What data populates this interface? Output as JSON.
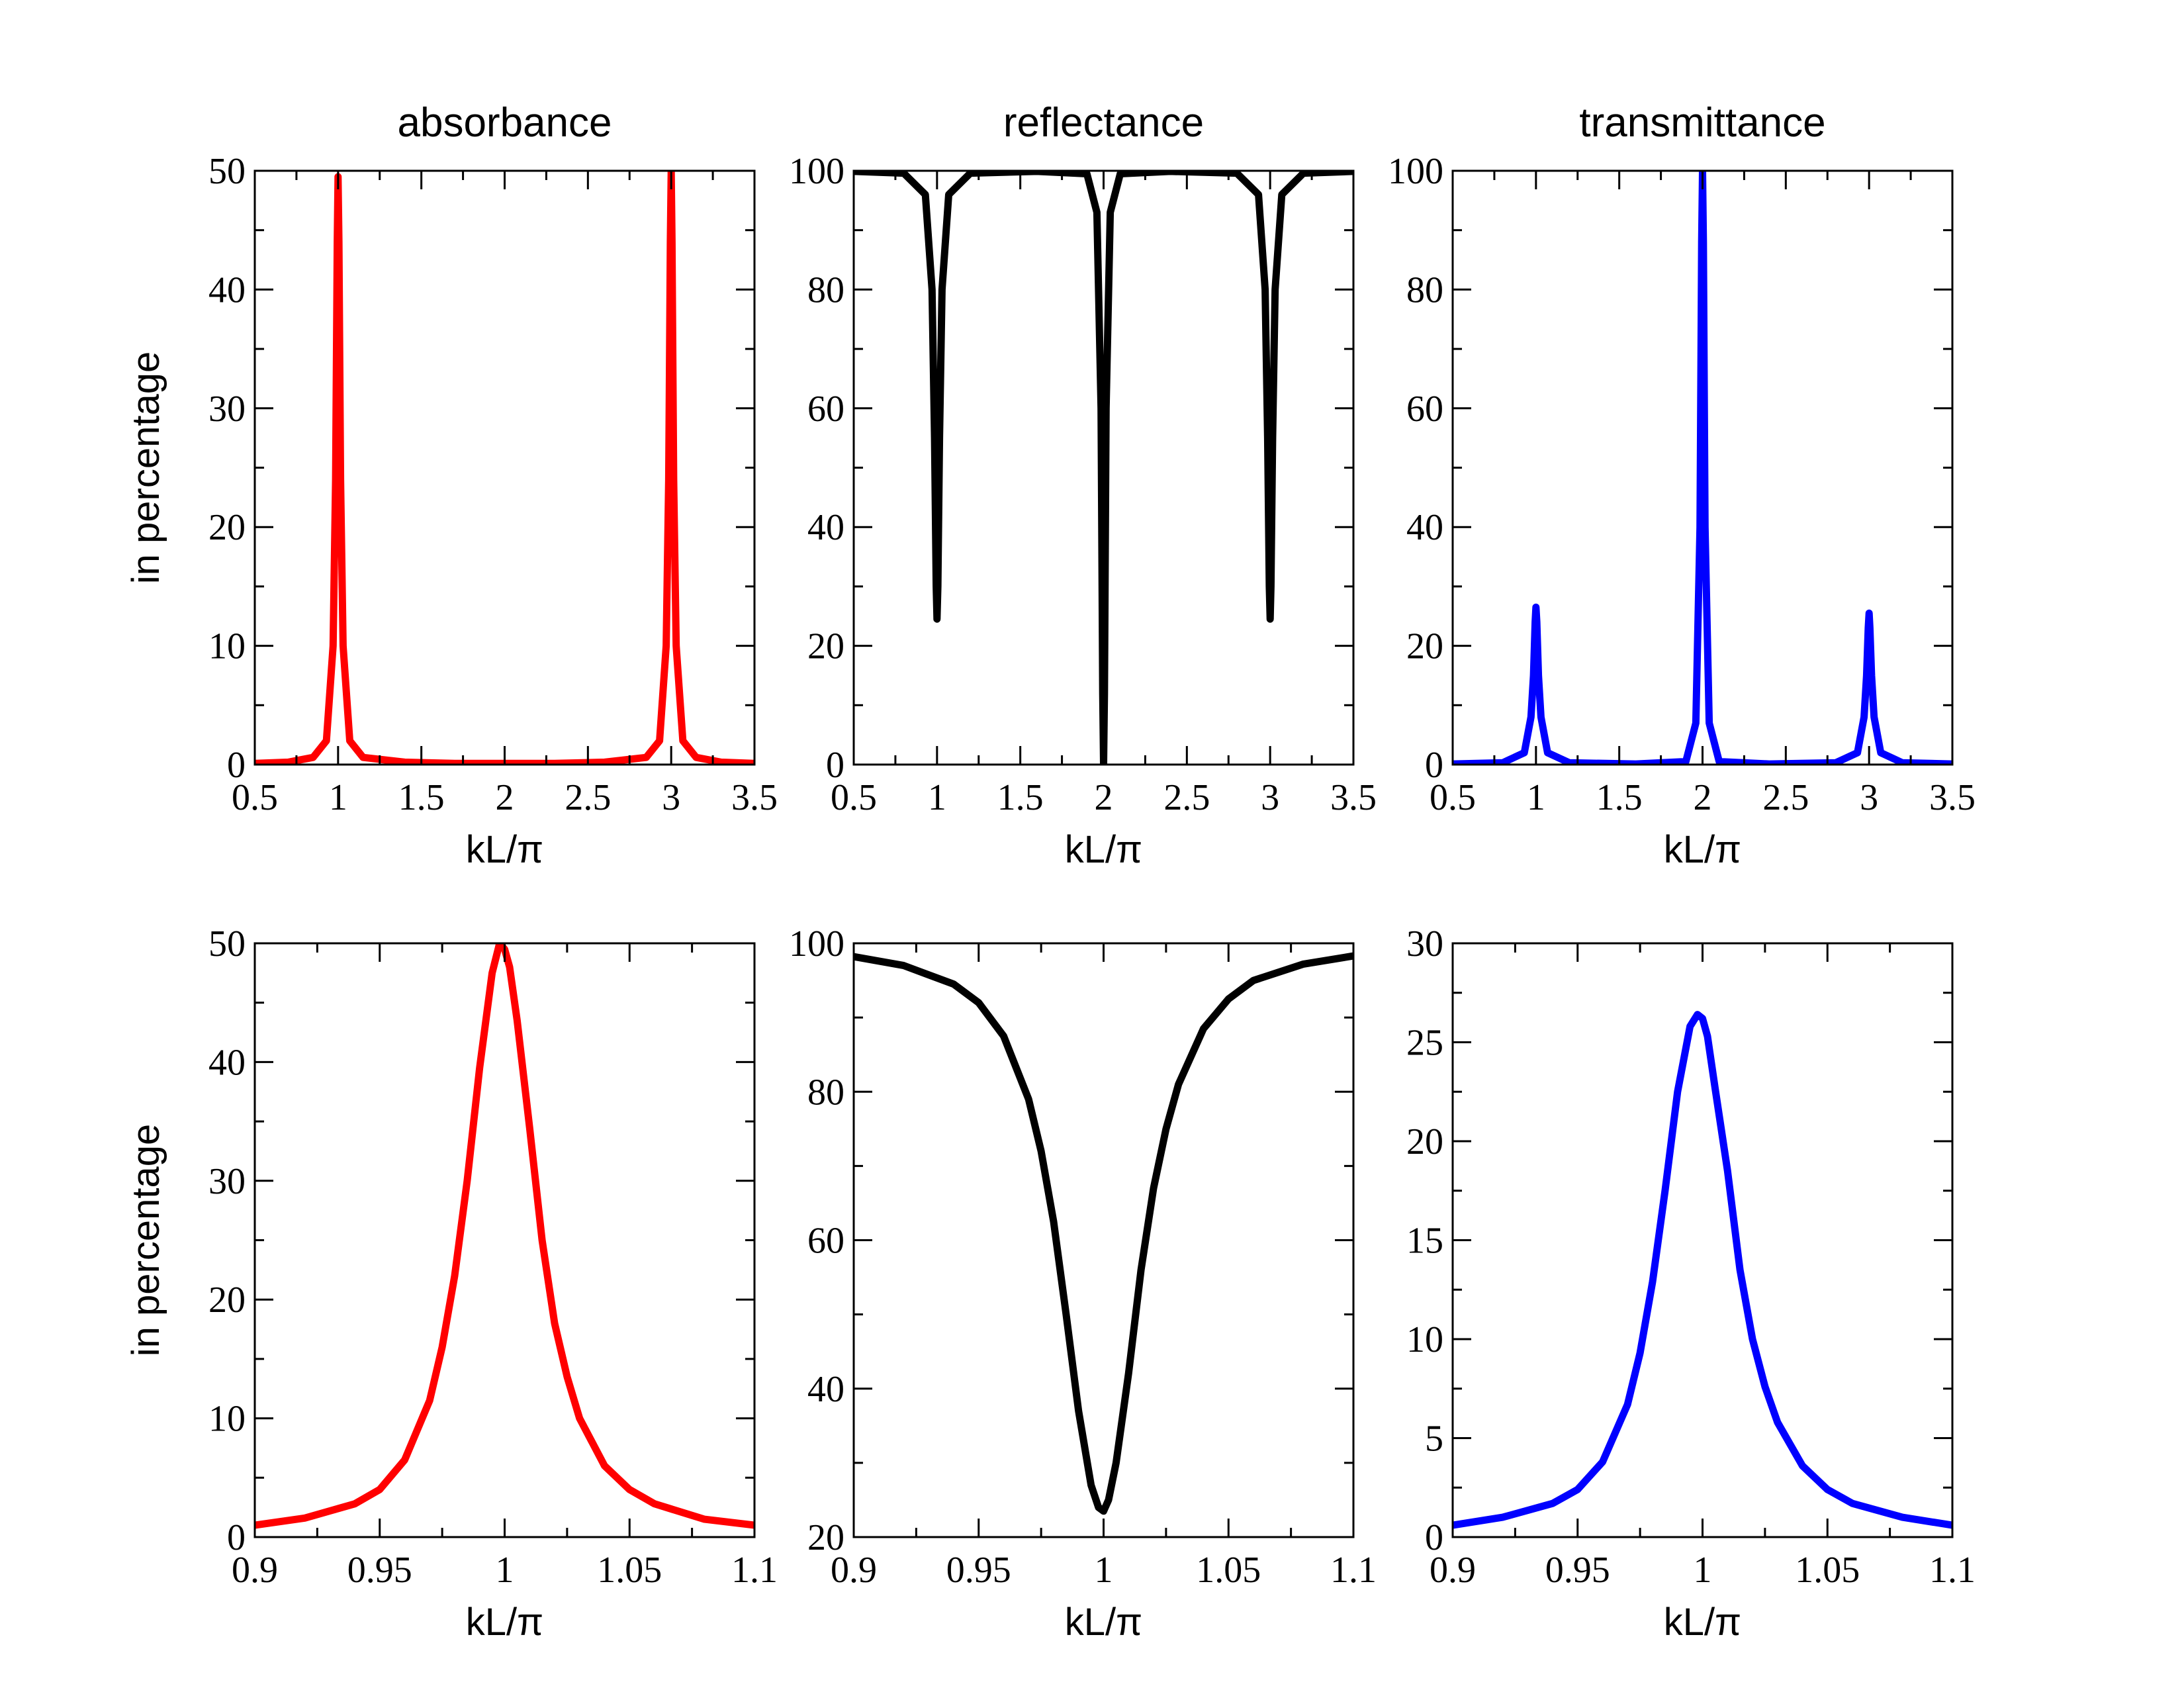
{
  "figure": {
    "background": "#ffffff"
  },
  "chart_data": [
    {
      "type": "line",
      "panel_id": "top-absorbance",
      "title": "absorbance",
      "xlabel": "kL/π",
      "ylabel": "in percentage",
      "xlim": [
        0.5,
        3.5
      ],
      "ylim": [
        0,
        50
      ],
      "xticks": [
        0.5,
        1,
        1.5,
        2,
        2.5,
        3,
        3.5
      ],
      "xtick_labels": [
        "0.5",
        "1",
        "1.5",
        "2",
        "2.5",
        "3",
        "3.5"
      ],
      "yticks": [
        0,
        10,
        20,
        30,
        40,
        50
      ],
      "ytick_labels": [
        "0",
        "10",
        "20",
        "30",
        "40",
        "50"
      ],
      "color": "#ff0000",
      "series": [
        {
          "name": "absorbance",
          "x": [
            0.5,
            0.7,
            0.85,
            0.93,
            0.97,
            0.985,
            0.995,
            1.0,
            1.005,
            1.015,
            1.03,
            1.07,
            1.15,
            1.4,
            1.7,
            2.0,
            2.3,
            2.6,
            2.85,
            2.93,
            2.97,
            2.985,
            2.995,
            3.0,
            3.005,
            3.015,
            3.03,
            3.07,
            3.15,
            3.3,
            3.5
          ],
          "y": [
            0.1,
            0.2,
            0.6,
            2.0,
            10.0,
            24.0,
            44.0,
            49.5,
            44.0,
            24.0,
            10.0,
            2.0,
            0.6,
            0.2,
            0.1,
            0.1,
            0.1,
            0.2,
            0.6,
            2.0,
            10.0,
            24.0,
            44.0,
            50.0,
            44.0,
            24.0,
            10.0,
            2.0,
            0.6,
            0.2,
            0.1
          ]
        }
      ]
    },
    {
      "type": "line",
      "panel_id": "top-reflectance",
      "title": "reflectance",
      "xlabel": "kL/π",
      "ylabel": "",
      "xlim": [
        0.5,
        3.5
      ],
      "ylim": [
        0,
        100
      ],
      "xticks": [
        0.5,
        1,
        1.5,
        2,
        2.5,
        3,
        3.5
      ],
      "xtick_labels": [
        "0.5",
        "1",
        "1.5",
        "2",
        "2.5",
        "3",
        "3.5"
      ],
      "yticks": [
        0,
        20,
        40,
        60,
        80,
        100
      ],
      "ytick_labels": [
        "0",
        "20",
        "40",
        "60",
        "80",
        "100"
      ],
      "color": "#000000",
      "series": [
        {
          "name": "reflectance",
          "x": [
            0.5,
            0.8,
            0.93,
            0.97,
            0.985,
            0.995,
            1.0,
            1.005,
            1.015,
            1.03,
            1.07,
            1.2,
            1.6,
            1.9,
            1.96,
            1.985,
            1.995,
            2.0,
            2.005,
            2.015,
            2.04,
            2.1,
            2.4,
            2.8,
            2.93,
            2.97,
            2.985,
            2.995,
            3.0,
            3.005,
            3.015,
            3.03,
            3.07,
            3.2,
            3.5
          ],
          "y": [
            99.9,
            99.6,
            96.0,
            80.0,
            55.0,
            30.0,
            24.5,
            30.0,
            55.0,
            80.0,
            96.0,
            99.6,
            99.9,
            99.5,
            93.0,
            60.0,
            12.0,
            0.0,
            12.0,
            60.0,
            93.0,
            99.5,
            99.9,
            99.6,
            96.0,
            80.0,
            55.0,
            30.0,
            24.5,
            30.0,
            55.0,
            80.0,
            96.0,
            99.6,
            99.9
          ]
        }
      ]
    },
    {
      "type": "line",
      "panel_id": "top-transmittance",
      "title": "transmittance",
      "xlabel": "kL/π",
      "ylabel": "",
      "xlim": [
        0.5,
        3.5
      ],
      "ylim": [
        0,
        100
      ],
      "xticks": [
        0.5,
        1,
        1.5,
        2,
        2.5,
        3,
        3.5
      ],
      "xtick_labels": [
        "0.5",
        "1",
        "1.5",
        "2",
        "2.5",
        "3",
        "3.5"
      ],
      "yticks": [
        0,
        20,
        40,
        60,
        80,
        100
      ],
      "ytick_labels": [
        "0",
        "20",
        "40",
        "60",
        "80",
        "100"
      ],
      "color": "#0000ff",
      "series": [
        {
          "name": "transmittance",
          "x": [
            0.5,
            0.8,
            0.93,
            0.97,
            0.985,
            0.995,
            1.0,
            1.005,
            1.015,
            1.03,
            1.07,
            1.2,
            1.6,
            1.9,
            1.96,
            1.985,
            1.995,
            2.0,
            2.005,
            2.015,
            2.04,
            2.1,
            2.4,
            2.8,
            2.93,
            2.97,
            2.985,
            2.995,
            3.0,
            3.005,
            3.015,
            3.03,
            3.07,
            3.2,
            3.5
          ],
          "y": [
            0.1,
            0.3,
            2.0,
            8.0,
            15.0,
            24.0,
            26.5,
            24.0,
            15.0,
            8.0,
            2.0,
            0.3,
            0.1,
            0.5,
            7.0,
            40.0,
            88.0,
            100.0,
            88.0,
            40.0,
            7.0,
            0.5,
            0.1,
            0.3,
            2.0,
            8.0,
            15.0,
            23.0,
            25.5,
            23.0,
            15.0,
            8.0,
            2.0,
            0.3,
            0.1
          ]
        }
      ]
    },
    {
      "type": "line",
      "panel_id": "bottom-absorbance",
      "xlabel": "kL/π",
      "ylabel": "in percentage",
      "xlim": [
        0.9,
        1.1
      ],
      "ylim": [
        0,
        50
      ],
      "xticks": [
        0.9,
        0.95,
        1.0,
        1.05,
        1.1
      ],
      "xtick_labels": [
        "0.9",
        "0.95",
        "1",
        "1.05",
        "1.1"
      ],
      "yticks": [
        0,
        10,
        20,
        30,
        40,
        50
      ],
      "ytick_labels": [
        "0",
        "10",
        "20",
        "30",
        "40",
        "50"
      ],
      "color": "#ff0000",
      "series": [
        {
          "name": "absorbance",
          "x": [
            0.9,
            0.92,
            0.94,
            0.95,
            0.96,
            0.97,
            0.975,
            0.98,
            0.985,
            0.99,
            0.995,
            0.998,
            1.0,
            1.002,
            1.005,
            1.01,
            1.015,
            1.02,
            1.025,
            1.03,
            1.04,
            1.05,
            1.06,
            1.08,
            1.1
          ],
          "y": [
            1.0,
            1.6,
            2.8,
            4.0,
            6.5,
            11.5,
            16.0,
            22.0,
            30.0,
            39.5,
            47.5,
            50.0,
            49.5,
            48.0,
            43.5,
            34.5,
            25.0,
            18.0,
            13.5,
            10.0,
            6.0,
            4.0,
            2.8,
            1.5,
            1.0
          ]
        }
      ]
    },
    {
      "type": "line",
      "panel_id": "bottom-reflectance",
      "xlabel": "kL/π",
      "ylabel": "",
      "xlim": [
        0.9,
        1.1
      ],
      "ylim": [
        20,
        100
      ],
      "xticks": [
        0.9,
        0.95,
        1.0,
        1.05,
        1.1
      ],
      "xtick_labels": [
        "0.9",
        "0.95",
        "1",
        "1.05",
        "1.1"
      ],
      "yticks": [
        20,
        40,
        60,
        80,
        100
      ],
      "ytick_labels": [
        "20",
        "40",
        "60",
        "80",
        "100"
      ],
      "color": "#000000",
      "series": [
        {
          "name": "reflectance",
          "x": [
            0.9,
            0.92,
            0.94,
            0.95,
            0.96,
            0.97,
            0.975,
            0.98,
            0.985,
            0.99,
            0.995,
            0.998,
            1.0,
            1.002,
            1.005,
            1.01,
            1.015,
            1.02,
            1.025,
            1.03,
            1.04,
            1.05,
            1.06,
            1.08,
            1.1
          ],
          "y": [
            98.2,
            97.0,
            94.5,
            92.0,
            87.5,
            79.0,
            72.0,
            62.5,
            50.0,
            37.0,
            27.0,
            24.0,
            23.5,
            25.0,
            30.0,
            42.0,
            56.0,
            67.0,
            75.0,
            81.0,
            88.5,
            92.5,
            95.0,
            97.2,
            98.3
          ]
        }
      ]
    },
    {
      "type": "line",
      "panel_id": "bottom-transmittance",
      "xlabel": "kL/π",
      "ylabel": "",
      "xlim": [
        0.9,
        1.1
      ],
      "ylim": [
        0,
        30
      ],
      "xticks": [
        0.9,
        0.95,
        1.0,
        1.05,
        1.1
      ],
      "xtick_labels": [
        "0.9",
        "0.95",
        "1",
        "1.05",
        "1.1"
      ],
      "yticks": [
        0,
        5,
        10,
        15,
        20,
        25,
        30
      ],
      "ytick_labels": [
        "0",
        "5",
        "10",
        "15",
        "20",
        "25",
        "30"
      ],
      "color": "#0000ff",
      "series": [
        {
          "name": "transmittance",
          "x": [
            0.9,
            0.92,
            0.94,
            0.95,
            0.96,
            0.97,
            0.975,
            0.98,
            0.985,
            0.99,
            0.995,
            0.998,
            1.0,
            1.002,
            1.005,
            1.01,
            1.015,
            1.02,
            1.025,
            1.03,
            1.04,
            1.05,
            1.06,
            1.08,
            1.1
          ],
          "y": [
            0.6,
            1.0,
            1.7,
            2.4,
            3.8,
            6.7,
            9.3,
            12.9,
            17.5,
            22.5,
            25.8,
            26.4,
            26.2,
            25.3,
            22.7,
            18.5,
            13.5,
            10.0,
            7.6,
            5.8,
            3.6,
            2.4,
            1.7,
            1.0,
            0.6
          ]
        }
      ]
    }
  ]
}
